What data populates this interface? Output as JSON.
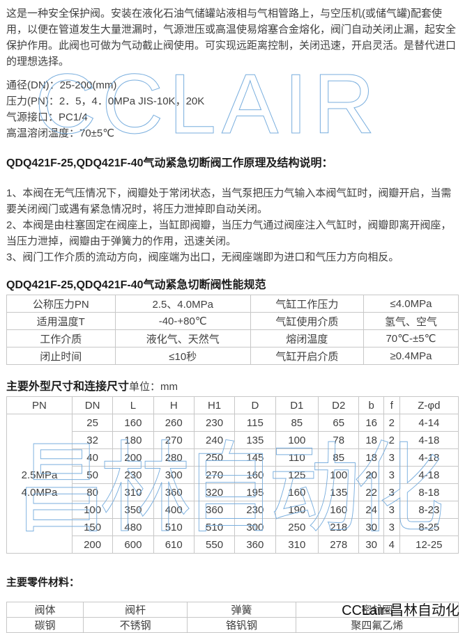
{
  "intro": "这是一种安全保护阀。安装在液化石油气储罐站液相与气相管路上，与空压机(或储气罐)配套使用，以便在管道发生大量泄漏时，气源泄压或高温使易熔塞合金熔化，阀门自动关闭止漏，起安全保护作用。此阀也可做为气动截止阀使用。可实现远距离控制，关闭迅速，开启灵活。是替代进口的理想选择。",
  "specs": [
    "通径(DN)：25-200(mm)",
    "压力(PN)：2．5，4．0MPa JIS-10K，20K",
    "气源接口：PC1/4",
    "高温溶闭温度：70±5℃"
  ],
  "principle": {
    "heading": "QDQ421F-25,QDQ421F-40气动紧急切断阀工作原理及结构说明：",
    "items": [
      "1、本阀在无气压情况下，阀瓣处于常闭状态，当气泵把压力气输入本阀气缸时，阀瓣开启，当需要关闭阀门或遇有紧急情况时，将压力泄掉即自动关闭。",
      "2、本阀是由柱塞固定在阀座上，当缸即阀瓣，当压力气通过阀座注入气缸时，阀瓣即离开阀座，当压力泄掉，阀瓣由于弹簧力的作用，迅速关闭。",
      "3、阀门工作介质的流动方向，阀座端为出口，无阀座端即为进口和气压力方向相反。"
    ]
  },
  "performance": {
    "heading": "QDQ421F-25,QDQ421F-40气动紧急切断阀性能规范",
    "rows": [
      [
        "公称压力PN",
        "2.5、4.0MPa",
        "气缸工作压力",
        "≤4.0MPa"
      ],
      [
        "适用温度T",
        "-40-+80℃",
        "气缸使用介质",
        "氢气、空气"
      ],
      [
        "工作介质",
        "液化气、天然气",
        "熔闭温度",
        "70℃-±5℃"
      ],
      [
        "闭止时间",
        "≤10秒",
        "气缸开启介质",
        "≥0.4MPa"
      ]
    ]
  },
  "dimensions": {
    "heading_bold": "主要外型尺寸和连接尺寸",
    "heading_rest": "单位：mm",
    "columns": [
      "PN",
      "DN",
      "L",
      "H",
      "H1",
      "D",
      "D1",
      "D2",
      "b",
      "f",
      "Z-φd"
    ],
    "pn_lines": [
      "2.5MPa",
      "4.0MPa"
    ],
    "rows": [
      [
        "25",
        "160",
        "260",
        "230",
        "115",
        "85",
        "65",
        "16",
        "2",
        "4-14"
      ],
      [
        "32",
        "180",
        "270",
        "240",
        "135",
        "100",
        "78",
        "18",
        "2",
        "4-18"
      ],
      [
        "40",
        "200",
        "280",
        "250",
        "145",
        "110",
        "85",
        "18",
        "3",
        "4-18"
      ],
      [
        "50",
        "230",
        "300",
        "270",
        "160",
        "125",
        "100",
        "20",
        "3",
        "4-18"
      ],
      [
        "80",
        "310",
        "360",
        "320",
        "195",
        "160",
        "135",
        "22",
        "3",
        "8-18"
      ],
      [
        "100",
        "350",
        "400",
        "360",
        "230",
        "190",
        "160",
        "24",
        "3",
        "8-23"
      ],
      [
        "150",
        "480",
        "510",
        "510",
        "300",
        "250",
        "218",
        "30",
        "3",
        "8-25"
      ],
      [
        "200",
        "600",
        "610",
        "550",
        "360",
        "310",
        "278",
        "30",
        "4",
        "12-25"
      ]
    ]
  },
  "materials": {
    "heading": "主要零件材料：",
    "rows": [
      [
        "阀体",
        "阀杆",
        "弹簧",
        "密封圈"
      ],
      [
        "碳钢",
        "不锈钢",
        "铬钒钢",
        "聚四氟乙烯"
      ]
    ]
  },
  "watermarks": {
    "big_text": "CCLAIR",
    "table_text": "昌林自动化",
    "corner_text": "CCLair-昌林自动化",
    "outline_color": "#79aede"
  }
}
